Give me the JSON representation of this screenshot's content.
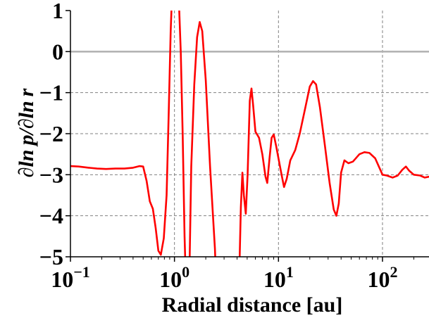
{
  "chart_data": {
    "type": "line",
    "title": "",
    "xlabel": "Radial distance [au]",
    "ylabel": "∂ln p/∂ln r",
    "xscale": "log",
    "xlim": [
      0.1,
      280
    ],
    "ylim": [
      -5,
      1
    ],
    "grid": true,
    "legend": "none",
    "x_ticks": [
      {
        "value": 0.1,
        "base": "10",
        "exp": "−1"
      },
      {
        "value": 1,
        "base": "10",
        "exp": "0"
      },
      {
        "value": 10,
        "base": "10",
        "exp": "1"
      },
      {
        "value": 100,
        "base": "10",
        "exp": "2"
      }
    ],
    "y_ticks": [
      {
        "value": 1,
        "label": "1"
      },
      {
        "value": 0,
        "label": "0"
      },
      {
        "value": -1,
        "label": "−1"
      },
      {
        "value": -2,
        "label": "−2"
      },
      {
        "value": -3,
        "label": "−3"
      },
      {
        "value": -4,
        "label": "−4"
      },
      {
        "value": -5,
        "label": "−5"
      }
    ],
    "reference_line": {
      "y": 0,
      "color": "#b0b0b0"
    },
    "series": [
      {
        "color": "#ff0000",
        "points": [
          [
            0.1,
            -2.79
          ],
          [
            0.12,
            -2.8
          ],
          [
            0.15,
            -2.83
          ],
          [
            0.18,
            -2.85
          ],
          [
            0.22,
            -2.86
          ],
          [
            0.27,
            -2.85
          ],
          [
            0.33,
            -2.85
          ],
          [
            0.4,
            -2.83
          ],
          [
            0.46,
            -2.79
          ],
          [
            0.5,
            -2.8
          ],
          [
            0.54,
            -3.15
          ],
          [
            0.58,
            -3.65
          ],
          [
            0.62,
            -3.83
          ],
          [
            0.66,
            -4.3
          ],
          [
            0.7,
            -4.85
          ],
          [
            0.74,
            -4.95
          ],
          [
            0.79,
            -4.55
          ],
          [
            0.84,
            -3.5
          ],
          [
            0.88,
            -1.5
          ],
          [
            0.92,
            0.5
          ],
          [
            0.945,
            1.3
          ]
        ]
      },
      {
        "color": "#ff0000",
        "points": [
          [
            1.1,
            1.3
          ],
          [
            1.15,
            0.0
          ],
          [
            1.2,
            -2.0
          ],
          [
            1.25,
            -4.5
          ],
          [
            1.3,
            -6.0
          ]
        ]
      },
      {
        "color": "#ff0000",
        "points": [
          [
            1.38,
            -6.0
          ],
          [
            1.45,
            -2.8
          ],
          [
            1.55,
            -0.8
          ],
          [
            1.65,
            0.35
          ],
          [
            1.75,
            0.72
          ],
          [
            1.85,
            0.5
          ],
          [
            2.0,
            -0.7
          ],
          [
            2.2,
            -2.8
          ],
          [
            2.45,
            -4.8
          ],
          [
            2.55,
            -6.0
          ]
        ]
      },
      {
        "color": "#ff0000",
        "points": [
          [
            4.15,
            -6.0
          ],
          [
            4.35,
            -3.8
          ],
          [
            4.5,
            -2.95
          ],
          [
            4.65,
            -3.5
          ],
          [
            4.85,
            -3.95
          ],
          [
            5.05,
            -3.0
          ],
          [
            5.3,
            -1.2
          ],
          [
            5.5,
            -0.9
          ],
          [
            5.7,
            -1.3
          ],
          [
            6.0,
            -1.95
          ],
          [
            6.5,
            -2.1
          ],
          [
            7.0,
            -2.5
          ],
          [
            7.5,
            -3.05
          ],
          [
            7.8,
            -3.2
          ],
          [
            8.2,
            -2.6
          ],
          [
            8.6,
            -2.1
          ],
          [
            9.0,
            -2.02
          ],
          [
            9.5,
            -2.3
          ],
          [
            10.0,
            -2.6
          ],
          [
            10.7,
            -3.0
          ],
          [
            11.3,
            -3.3
          ],
          [
            12.0,
            -3.1
          ],
          [
            13.0,
            -2.65
          ],
          [
            14.5,
            -2.4
          ],
          [
            16.0,
            -2.0
          ],
          [
            18.0,
            -1.4
          ],
          [
            20.0,
            -0.85
          ],
          [
            21.5,
            -0.72
          ],
          [
            23.0,
            -0.8
          ],
          [
            25.0,
            -1.35
          ],
          [
            28.0,
            -2.3
          ],
          [
            31.0,
            -3.2
          ],
          [
            34.0,
            -3.85
          ],
          [
            36.0,
            -4.0
          ],
          [
            38.0,
            -3.7
          ],
          [
            40.0,
            -2.95
          ],
          [
            43.0,
            -2.65
          ],
          [
            47.0,
            -2.72
          ],
          [
            52.0,
            -2.68
          ],
          [
            60.0,
            -2.5
          ],
          [
            67.0,
            -2.45
          ],
          [
            75.0,
            -2.47
          ],
          [
            85.0,
            -2.6
          ],
          [
            100.0,
            -3.0
          ],
          [
            110.0,
            -3.02
          ],
          [
            125.0,
            -3.07
          ],
          [
            140.0,
            -3.02
          ],
          [
            155.0,
            -2.88
          ],
          [
            168.0,
            -2.8
          ],
          [
            180.0,
            -2.9
          ],
          [
            200.0,
            -3.0
          ],
          [
            230.0,
            -3.02
          ],
          [
            255.0,
            -3.07
          ],
          [
            280.0,
            -3.05
          ]
        ]
      }
    ]
  }
}
